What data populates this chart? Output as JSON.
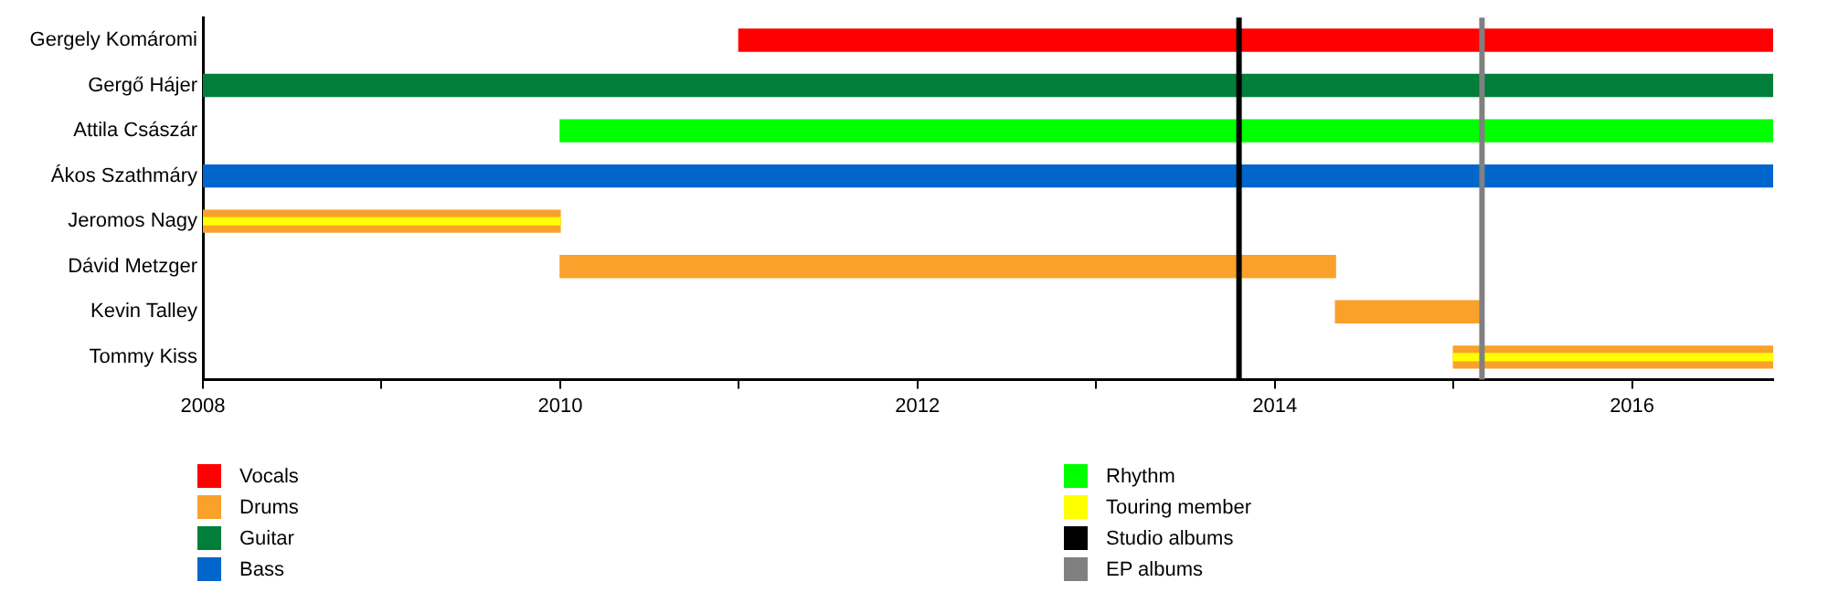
{
  "chart_data": {
    "type": "bar",
    "orientation": "horizontal",
    "categories": [
      "Gergely Komáromi",
      "Gergő Hájer",
      "Attila Császár",
      "Ákos Szathmáry",
      "Jeromos Nagy",
      "Dávid Metzger",
      "Kevin Talley",
      "Tommy Kiss"
    ],
    "series": [
      {
        "name": "Vocals",
        "color": "#ff0000",
        "base": [
          2011.0,
          null,
          null,
          null,
          null,
          null,
          null,
          null
        ],
        "values": [
          5.79,
          null,
          null,
          null,
          null,
          null,
          null,
          null
        ]
      },
      {
        "name": "Drums",
        "color": "#f9a12a",
        "base": [
          null,
          null,
          null,
          null,
          2008.0,
          2010.0,
          2014.34,
          2015.0
        ],
        "values": [
          null,
          null,
          null,
          null,
          2.0,
          4.34,
          0.82,
          1.79
        ]
      },
      {
        "name": "Guitar",
        "color": "#007e3a",
        "base": [
          null,
          2008.0,
          null,
          null,
          null,
          null,
          null,
          null
        ],
        "values": [
          null,
          8.79,
          null,
          null,
          null,
          null,
          null,
          null
        ]
      },
      {
        "name": "Bass",
        "color": "#0066cc",
        "base": [
          null,
          null,
          null,
          2008.0,
          null,
          null,
          null,
          null
        ],
        "values": [
          null,
          null,
          null,
          8.79,
          null,
          null,
          null,
          null
        ]
      },
      {
        "name": "Rhythm",
        "color": "#00ff00",
        "base": [
          null,
          null,
          2010.0,
          null,
          null,
          null,
          null,
          null
        ],
        "values": [
          null,
          null,
          6.79,
          null,
          null,
          null,
          null,
          null
        ]
      },
      {
        "name": "Touring member",
        "color": "#ffff00",
        "base": [
          null,
          null,
          null,
          null,
          2008.0,
          null,
          null,
          2015.0
        ],
        "values": [
          null,
          null,
          null,
          null,
          2.0,
          null,
          null,
          1.79
        ]
      }
    ],
    "ref_lines": [
      {
        "axis": "x",
        "value": 2013.8,
        "label": "Studio albums",
        "color": "#000000"
      },
      {
        "axis": "x",
        "value": 2015.16,
        "label": "EP albums",
        "color": "#808080"
      }
    ],
    "xlim": [
      2008,
      2016.79
    ],
    "xticks": [
      2008,
      {
        "value": 2009,
        "label": null
      },
      2010,
      {
        "value": 2011,
        "label": null
      },
      2012,
      {
        "value": 2013,
        "label": null
      },
      2014,
      {
        "value": 2015,
        "label": null
      },
      2016
    ],
    "grid": false,
    "legend": "bottom"
  }
}
